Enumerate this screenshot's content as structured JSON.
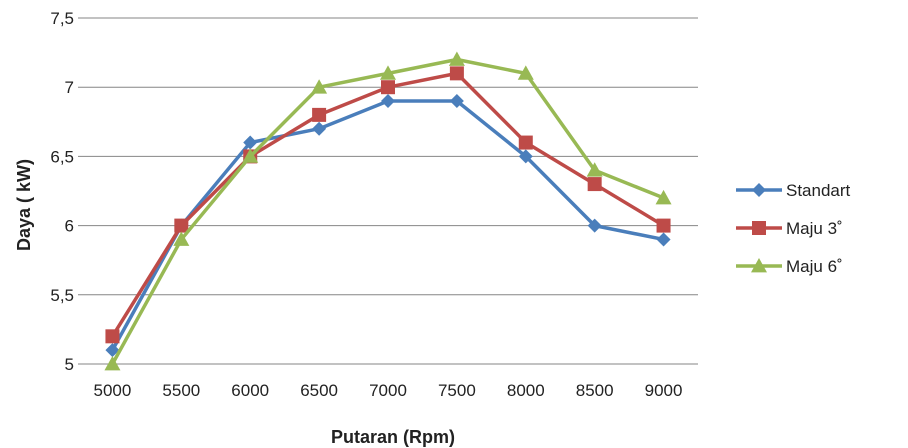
{
  "chart_data": {
    "type": "line",
    "xlabel": "Putaran (Rpm)",
    "ylabel": "Daya ( kW)",
    "x": [
      5000,
      5500,
      6000,
      6500,
      7000,
      7500,
      8000,
      8500,
      9000
    ],
    "x_tick_labels": [
      "5000",
      "5500",
      "6000",
      "6500",
      "7000",
      "7500",
      "8000",
      "8500",
      "9000"
    ],
    "y_ticks": [
      5,
      5.5,
      6,
      6.5,
      7,
      7.5
    ],
    "y_tick_labels": [
      "5",
      "5,5",
      "6",
      "6,5",
      "7",
      "7,5"
    ],
    "ylim": [
      5,
      7.5
    ],
    "grid": true,
    "legend_position": "right",
    "series": [
      {
        "name": "Standart",
        "color": "#4a7ebb",
        "marker": "diamond",
        "values": [
          5.1,
          6.0,
          6.6,
          6.7,
          6.9,
          6.9,
          6.5,
          6.0,
          5.9
        ]
      },
      {
        "name": "Maju 3˚",
        "color": "#be4b48",
        "marker": "square",
        "values": [
          5.2,
          6.0,
          6.5,
          6.8,
          7.0,
          7.1,
          6.6,
          6.3,
          6.0
        ]
      },
      {
        "name": "Maju 6˚",
        "color": "#98b954",
        "marker": "triangle",
        "values": [
          5.0,
          5.9,
          6.5,
          7.0,
          7.1,
          7.2,
          7.1,
          6.4,
          6.2
        ]
      }
    ]
  }
}
